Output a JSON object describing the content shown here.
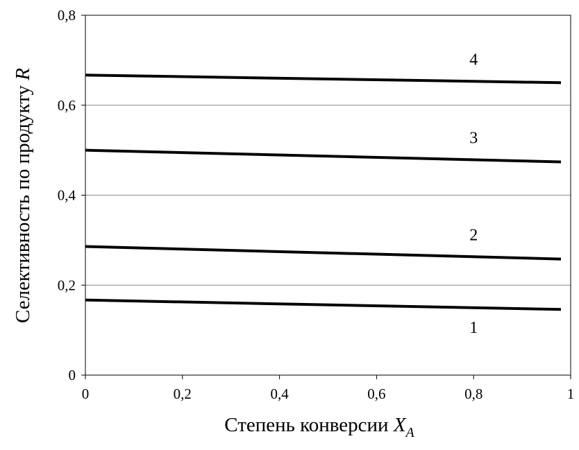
{
  "chart_data": {
    "type": "line",
    "xlabel": "Степень конверсии ",
    "xlabel_var": "X",
    "xlabel_sub": "A",
    "ylabel": "Селективность по продукту ",
    "ylabel_var": "R",
    "xlim": [
      0,
      1
    ],
    "ylim": [
      0,
      0.8
    ],
    "x_ticks": [
      "0",
      "0,2",
      "0,4",
      "0,6",
      "0,8",
      "1"
    ],
    "y_ticks": [
      "0",
      "0,2",
      "0,4",
      "0,6",
      "0,8"
    ],
    "grid": "horizontal",
    "line_color": "#000000",
    "series": [
      {
        "name": "1",
        "x": [
          0,
          0.98
        ],
        "y": [
          0.167,
          0.146
        ]
      },
      {
        "name": "2",
        "x": [
          0,
          0.98
        ],
        "y": [
          0.286,
          0.258
        ]
      },
      {
        "name": "3",
        "x": [
          0,
          0.98
        ],
        "y": [
          0.5,
          0.474
        ]
      },
      {
        "name": "4",
        "x": [
          0,
          0.98
        ],
        "y": [
          0.667,
          0.65
        ]
      }
    ]
  }
}
